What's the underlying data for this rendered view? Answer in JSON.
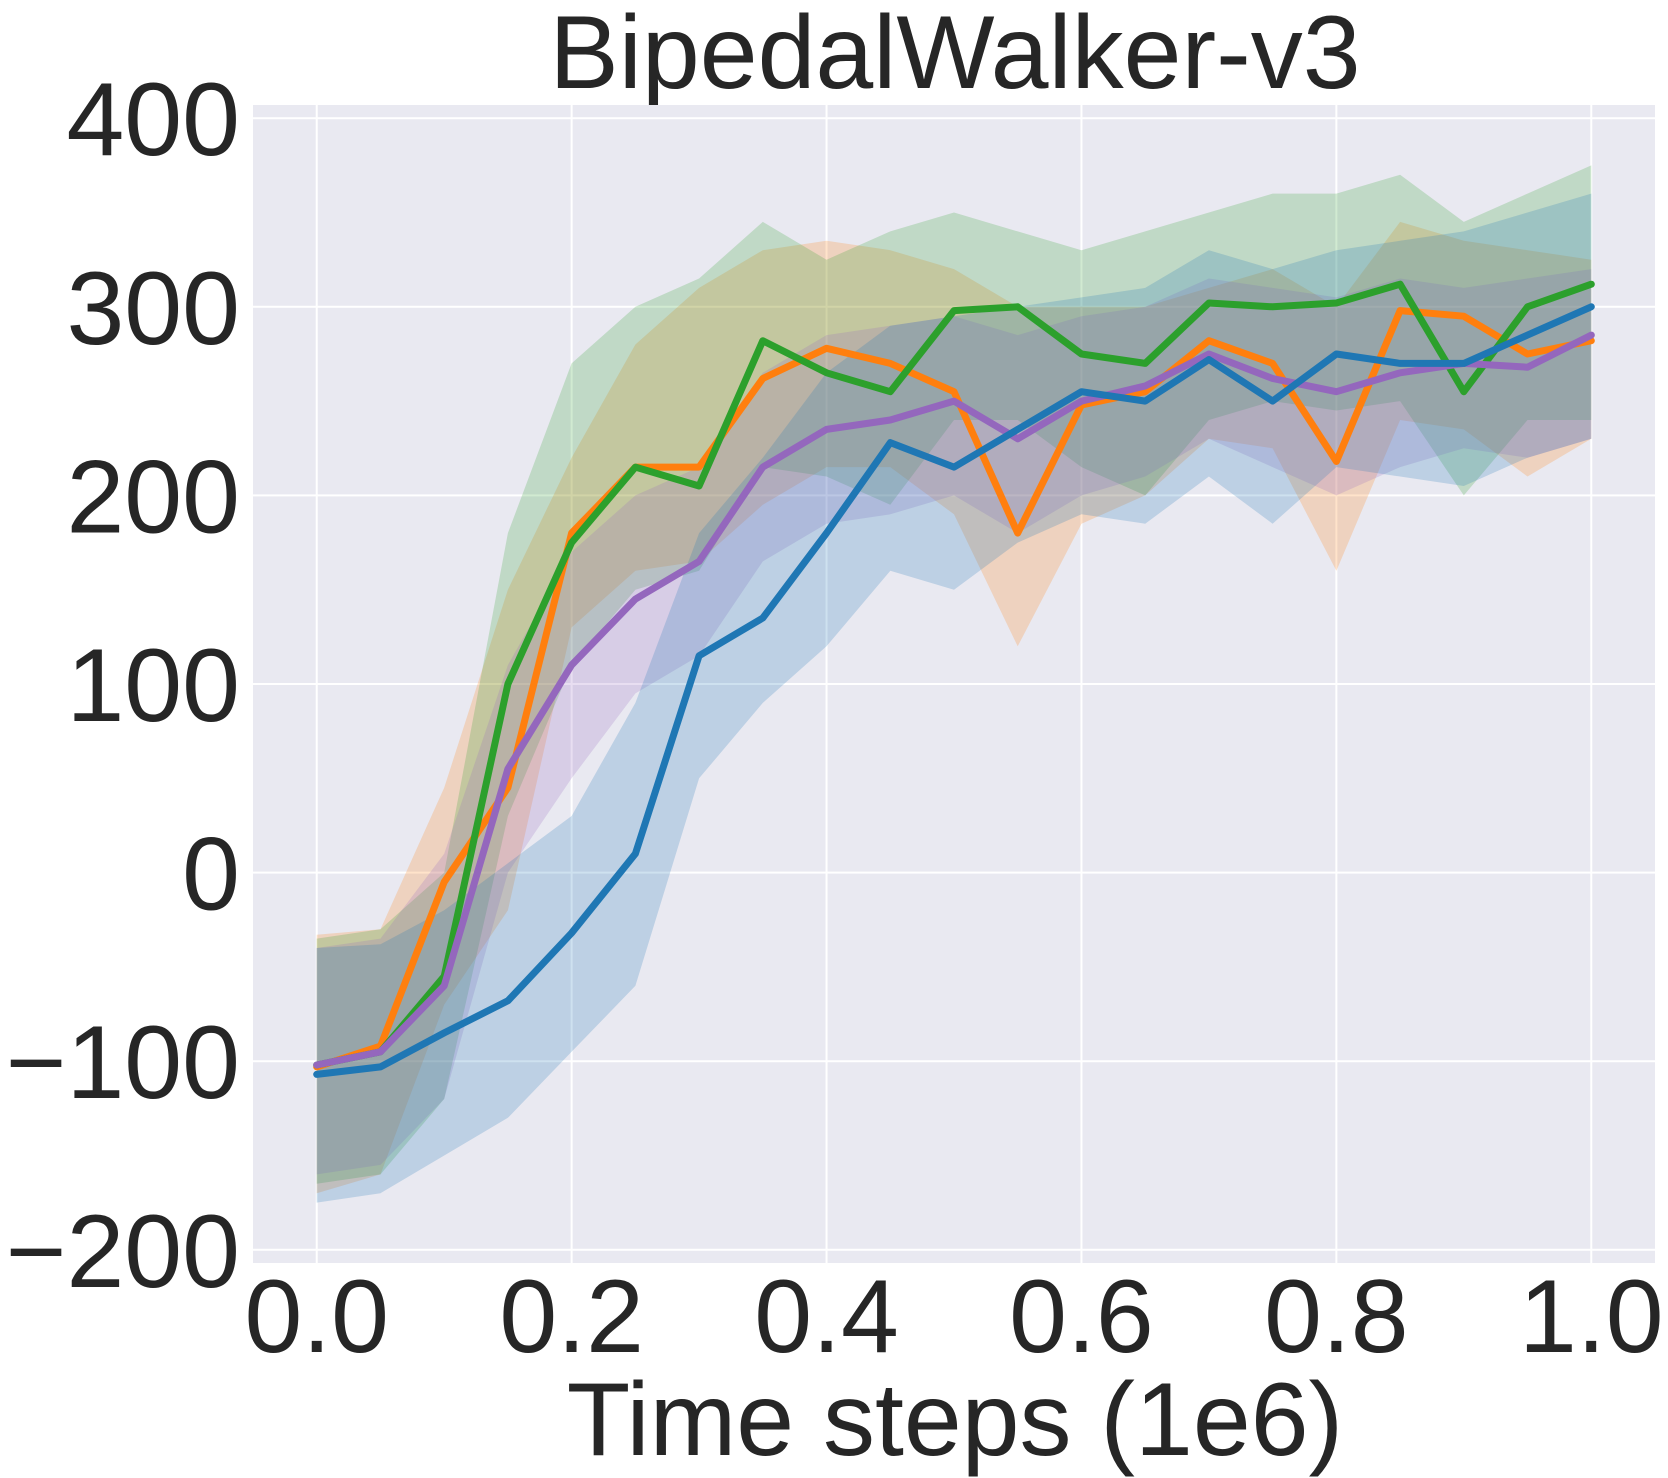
{
  "chart_data": {
    "type": "line",
    "title": "BipedalWalker-v3",
    "xlabel": "Time steps (1e6)",
    "ylabel": "",
    "xlim": [
      -0.05,
      1.05
    ],
    "ylim": [
      -207,
      407
    ],
    "xticks": [
      0.0,
      0.2,
      0.4,
      0.6,
      0.8,
      1.0
    ],
    "xtick_labels": [
      "0.0",
      "0.2",
      "0.4",
      "0.6",
      "0.8",
      "1.0"
    ],
    "yticks": [
      -200,
      -100,
      0,
      100,
      200,
      300,
      400
    ],
    "ytick_labels": [
      "−200",
      "−100",
      "0",
      "100",
      "200",
      "300",
      "400"
    ],
    "grid": true,
    "background": "#e9e9f1",
    "x": [
      0.0,
      0.05,
      0.1,
      0.15,
      0.2,
      0.25,
      0.3,
      0.35,
      0.4,
      0.45,
      0.5,
      0.55,
      0.6,
      0.65,
      0.7,
      0.75,
      0.8,
      0.85,
      0.9,
      0.95,
      1.0
    ],
    "series": [
      {
        "color": "#ff7f0e",
        "values": [
          -103,
          -92,
          -5,
          45,
          180,
          215,
          215,
          262,
          278,
          270,
          255,
          180,
          248,
          255,
          282,
          270,
          218,
          298,
          295,
          275,
          282
        ],
        "upper": [
          -33,
          -30,
          45,
          150,
          220,
          280,
          310,
          330,
          335,
          330,
          320,
          300,
          300,
          300,
          310,
          320,
          300,
          345,
          335,
          330,
          325
        ],
        "lower": [
          -170,
          -160,
          -70,
          -20,
          130,
          160,
          165,
          195,
          215,
          215,
          190,
          120,
          185,
          200,
          230,
          225,
          160,
          240,
          235,
          210,
          230
        ]
      },
      {
        "color": "#2ca02c",
        "values": [
          -102,
          -95,
          -55,
          100,
          175,
          215,
          205,
          282,
          265,
          255,
          298,
          300,
          275,
          270,
          302,
          300,
          302,
          312,
          255,
          300,
          312
        ],
        "upper": [
          -35,
          -30,
          0,
          180,
          270,
          300,
          315,
          345,
          325,
          340,
          350,
          340,
          330,
          340,
          350,
          360,
          360,
          370,
          345,
          360,
          375
        ],
        "lower": [
          -165,
          -160,
          -120,
          30,
          110,
          150,
          160,
          215,
          210,
          195,
          240,
          240,
          215,
          200,
          240,
          250,
          245,
          250,
          200,
          240,
          240
        ]
      },
      {
        "color": "#9467bd",
        "values": [
          -102,
          -95,
          -60,
          55,
          110,
          145,
          165,
          215,
          235,
          240,
          250,
          230,
          250,
          258,
          275,
          262,
          255,
          265,
          270,
          268,
          285
        ],
        "upper": [
          -40,
          -35,
          10,
          110,
          170,
          200,
          215,
          265,
          285,
          290,
          295,
          285,
          295,
          300,
          315,
          310,
          305,
          315,
          310,
          315,
          320
        ],
        "lower": [
          -160,
          -155,
          -120,
          0,
          50,
          95,
          115,
          165,
          185,
          190,
          200,
          180,
          200,
          210,
          230,
          215,
          200,
          215,
          225,
          220,
          230
        ]
      },
      {
        "color": "#1f77b4",
        "values": [
          -107,
          -103,
          -85,
          -68,
          -32,
          10,
          115,
          135,
          180,
          228,
          215,
          235,
          255,
          250,
          272,
          250,
          275,
          270,
          270,
          285,
          300
        ],
        "upper": [
          -40,
          -38,
          -20,
          5,
          30,
          90,
          180,
          220,
          265,
          290,
          295,
          300,
          305,
          310,
          330,
          320,
          330,
          335,
          340,
          350,
          360
        ],
        "lower": [
          -175,
          -170,
          -150,
          -130,
          -95,
          -60,
          50,
          90,
          120,
          160,
          150,
          175,
          190,
          185,
          210,
          185,
          215,
          210,
          205,
          220,
          230
        ]
      }
    ]
  }
}
